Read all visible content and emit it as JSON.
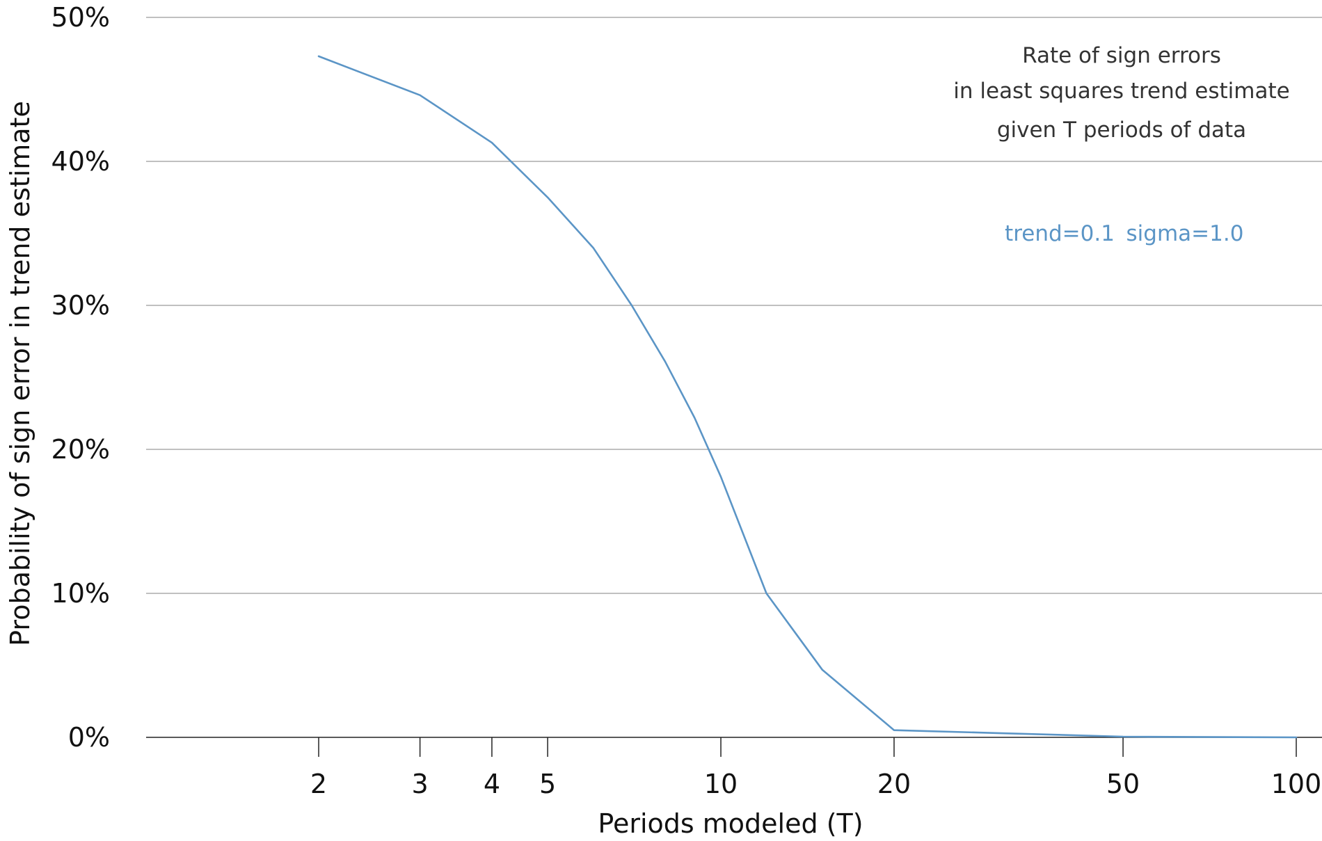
{
  "chart_data": {
    "type": "line",
    "xscale": "log",
    "x_ticks": [
      2,
      3,
      4,
      5,
      10,
      20,
      50,
      100
    ],
    "x_tick_labels": [
      "2",
      "3",
      "4",
      "5",
      "10",
      "20",
      "50",
      "100"
    ],
    "ylim": [
      0,
      0.5
    ],
    "y_ticks": [
      0,
      0.1,
      0.2,
      0.3,
      0.4,
      0.5
    ],
    "y_tick_labels": [
      "0%",
      "10%",
      "20%",
      "30%",
      "40%",
      "50%"
    ],
    "xlabel": "Periods modeled (T)",
    "ylabel": "Probability of sign error in trend estimate",
    "grid": "horizontal",
    "series": [
      {
        "x": [
          2,
          3,
          4,
          5,
          6,
          7,
          8,
          9,
          10,
          12,
          15,
          20,
          30,
          50,
          100
        ],
        "y": [
          0.473,
          0.446,
          0.413,
          0.375,
          0.34,
          0.3,
          0.261,
          0.222,
          0.181,
          0.1,
          0.047,
          0.005,
          0.003,
          0.0005,
          0.0
        ],
        "color": "#5b95c6"
      }
    ],
    "annotation": {
      "title_lines": [
        "Rate of sign errors",
        "in least squares trend estimate",
        "given T periods of data"
      ],
      "params": [
        "trend=0.1",
        "sigma=1.0"
      ],
      "params_color": "#5b95c6"
    }
  }
}
